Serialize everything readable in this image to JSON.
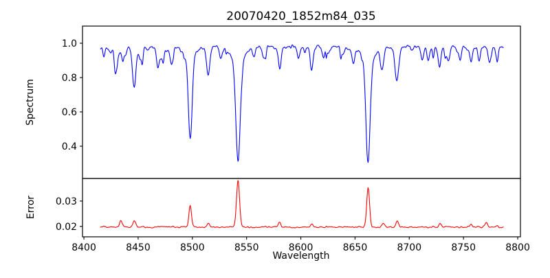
{
  "figure": {
    "background": "#ffffff",
    "frame_color": "#000000",
    "text_color": "#000000"
  },
  "chart_data": {
    "type": "line",
    "title": "20070420_1852m84_035",
    "xlabel": "Wavelength",
    "grid": false,
    "legend": "none",
    "x_range_data": [
      8415,
      8787
    ],
    "xlim": [
      8398.7,
      8802.5
    ],
    "xticks": [
      {
        "v": 8400,
        "label": "8400"
      },
      {
        "v": 8450,
        "label": "8450"
      },
      {
        "v": 8500,
        "label": "8500"
      },
      {
        "v": 8550,
        "label": "8550"
      },
      {
        "v": 8600,
        "label": "8600"
      },
      {
        "v": 8650,
        "label": "8650"
      },
      {
        "v": 8700,
        "label": "8700"
      },
      {
        "v": 8750,
        "label": "8750"
      },
      {
        "v": 8800,
        "label": "8800"
      }
    ],
    "subplots": [
      {
        "name": "spectrum",
        "ylabel": "Spectrum",
        "line_color": "#0000ff",
        "ylim": [
          0.212,
          1.1
        ],
        "yticks": [
          {
            "v": 0.4,
            "label": "0.4"
          },
          {
            "v": 0.6,
            "label": "0.6"
          },
          {
            "v": 0.8,
            "label": "0.8"
          },
          {
            "v": 1.0,
            "label": "1.0"
          }
        ]
      },
      {
        "name": "error",
        "ylabel": "Error",
        "line_color": "#ff0000",
        "ylim": [
          0.0159,
          0.0389
        ],
        "yticks": [
          {
            "v": 0.02,
            "label": "0.02"
          },
          {
            "v": 0.03,
            "label": "0.03"
          }
        ]
      }
    ],
    "spectrum": {
      "continuum": 0.98,
      "noise_amplitude": 0.025,
      "absorption_lines": [
        {
          "center": 8429.8,
          "depth": 0.13,
          "sigma": 1.4
        },
        {
          "center": 8446.4,
          "depth": 0.22,
          "sigma": 1.7
        },
        {
          "center": 8452.0,
          "depth": 0.07,
          "sigma": 1.1
        },
        {
          "center": 8468.0,
          "depth": 0.08,
          "sigma": 1.2
        },
        {
          "center": 8480.0,
          "depth": 0.06,
          "sigma": 1.1
        },
        {
          "center": 8498.0,
          "depth": 0.47,
          "sigma": 1.7,
          "wing_depth": 0.06,
          "wing_sigma": 5.0
        },
        {
          "center": 8514.6,
          "depth": 0.17,
          "sigma": 1.5
        },
        {
          "center": 8526.0,
          "depth": 0.06,
          "sigma": 1.1
        },
        {
          "center": 8542.1,
          "depth": 0.58,
          "sigma": 2.0,
          "wing_depth": 0.09,
          "wing_sigma": 6.0
        },
        {
          "center": 8556.8,
          "depth": 0.06,
          "sigma": 1.0
        },
        {
          "center": 8580.5,
          "depth": 0.11,
          "sigma": 1.4
        },
        {
          "center": 8598.0,
          "depth": 0.07,
          "sigma": 1.2
        },
        {
          "center": 8610.2,
          "depth": 0.1,
          "sigma": 1.3
        },
        {
          "center": 8621.0,
          "depth": 0.06,
          "sigma": 1.1
        },
        {
          "center": 8648.5,
          "depth": 0.09,
          "sigma": 1.3
        },
        {
          "center": 8662.1,
          "depth": 0.56,
          "sigma": 1.9,
          "wing_depth": 0.08,
          "wing_sigma": 6.0
        },
        {
          "center": 8674.7,
          "depth": 0.13,
          "sigma": 1.4
        },
        {
          "center": 8688.6,
          "depth": 0.2,
          "sigma": 1.7
        },
        {
          "center": 8712.0,
          "depth": 0.08,
          "sigma": 1.2
        },
        {
          "center": 8717.5,
          "depth": 0.09,
          "sigma": 1.2
        },
        {
          "center": 8728.0,
          "depth": 0.11,
          "sigma": 1.3
        },
        {
          "center": 8736.5,
          "depth": 0.07,
          "sigma": 1.1
        },
        {
          "center": 8747.0,
          "depth": 0.08,
          "sigma": 1.2
        },
        {
          "center": 8757.0,
          "depth": 0.09,
          "sigma": 1.2
        },
        {
          "center": 8764.5,
          "depth": 0.07,
          "sigma": 1.1
        },
        {
          "center": 8774.0,
          "depth": 0.1,
          "sigma": 1.3
        }
      ]
    },
    "error": {
      "baseline": 0.0197,
      "noise_amplitude": 0.0008,
      "spike_coupling": 0.004,
      "peaks": [
        {
          "center": 8434.0,
          "height": 0.0022,
          "sigma": 1.2
        },
        {
          "center": 8446.5,
          "height": 0.0026,
          "sigma": 1.2
        },
        {
          "center": 8498.0,
          "height": 0.0085,
          "sigma": 1.2
        },
        {
          "center": 8514.6,
          "height": 0.0015,
          "sigma": 1.1
        },
        {
          "center": 8542.1,
          "height": 0.0185,
          "sigma": 1.4
        },
        {
          "center": 8580.5,
          "height": 0.0017,
          "sigma": 1.1
        },
        {
          "center": 8610.2,
          "height": 0.0012,
          "sigma": 1.0
        },
        {
          "center": 8662.1,
          "height": 0.0155,
          "sigma": 1.3
        },
        {
          "center": 8676.0,
          "height": 0.0017,
          "sigma": 1.1
        },
        {
          "center": 8689.0,
          "height": 0.0024,
          "sigma": 1.2
        },
        {
          "center": 8728.5,
          "height": 0.0013,
          "sigma": 1.0
        },
        {
          "center": 8757.0,
          "height": 0.0011,
          "sigma": 1.0
        },
        {
          "center": 8771.0,
          "height": 0.0018,
          "sigma": 1.1
        }
      ]
    },
    "generation": {
      "seed": 13,
      "wl_start": 8415,
      "wl_end": 8787,
      "wl_step": 0.5,
      "n_spikes": 55,
      "spike_depth_min": 0.015,
      "spike_depth_max": 0.09,
      "spike_sigma_min": 0.5,
      "spike_sigma_max": 1.4
    }
  }
}
